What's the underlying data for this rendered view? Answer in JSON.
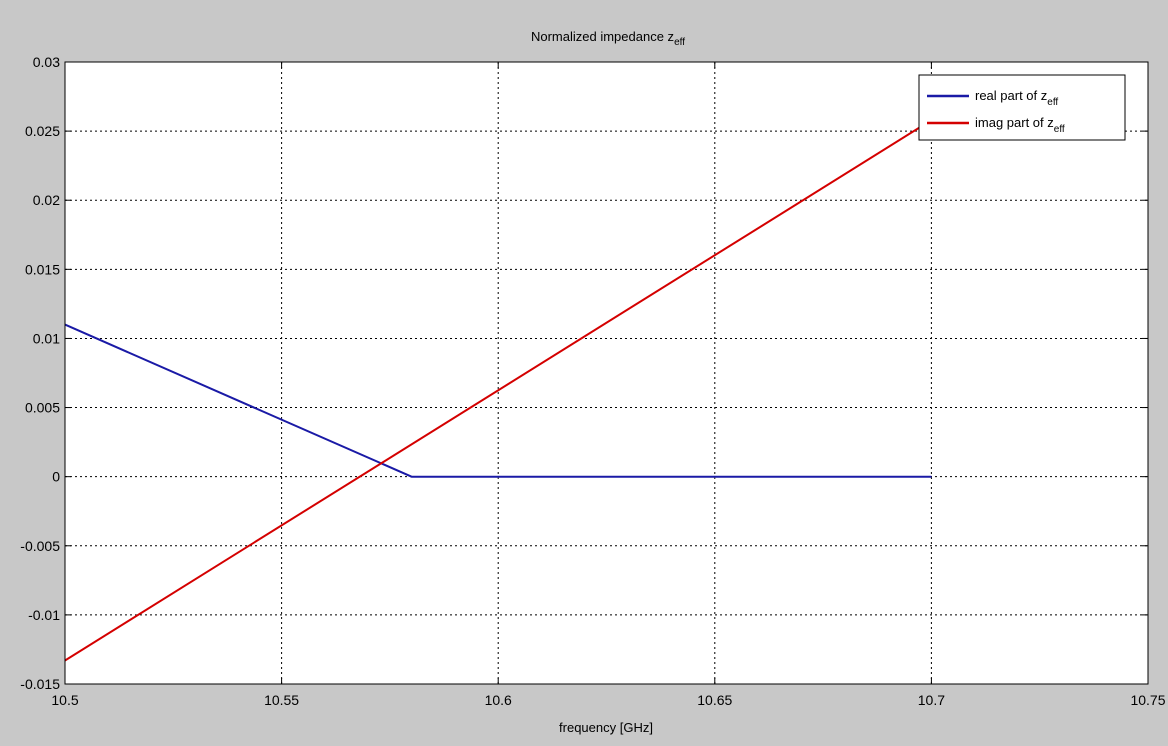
{
  "colors": {
    "figure_background": "#c8c8c8",
    "axes_background": "#ffffff",
    "grid": "#000000",
    "real_series": "#1a1aa6",
    "imag_series": "#d40000"
  },
  "chart_data": {
    "type": "line",
    "title": {
      "main": "Normalized impedance z",
      "sub": "eff"
    },
    "xlabel": "frequency [GHz]",
    "ylabel": "",
    "xlim": [
      10.5,
      10.75
    ],
    "ylim": [
      -0.015,
      0.03
    ],
    "x_ticks": [
      10.5,
      10.55,
      10.6,
      10.65,
      10.7,
      10.75
    ],
    "x_tick_labels": [
      "10.5",
      "10.55",
      "10.6",
      "10.65",
      "10.7",
      "10.75"
    ],
    "y_ticks": [
      -0.015,
      -0.01,
      -0.005,
      0,
      0.005,
      0.01,
      0.015,
      0.02,
      0.025,
      0.03
    ],
    "y_tick_labels": [
      "-0.015",
      "-0.01",
      "-0.005",
      "0",
      "0.005",
      "0.01",
      "0.015",
      "0.02",
      "0.025",
      "0.03"
    ],
    "grid": true,
    "grid_style": "dotted",
    "legend_position": "top-right",
    "series": [
      {
        "name": {
          "main": "real part of z",
          "sub": "eff"
        },
        "color": "#1a1aa6",
        "x": [
          10.5,
          10.58,
          10.7
        ],
        "y": [
          0.011,
          0.0,
          0.0
        ]
      },
      {
        "name": {
          "main": "imag part of z",
          "sub": "eff"
        },
        "color": "#d40000",
        "x": [
          10.5,
          10.7
        ],
        "y": [
          -0.0133,
          0.0258
        ]
      }
    ]
  }
}
